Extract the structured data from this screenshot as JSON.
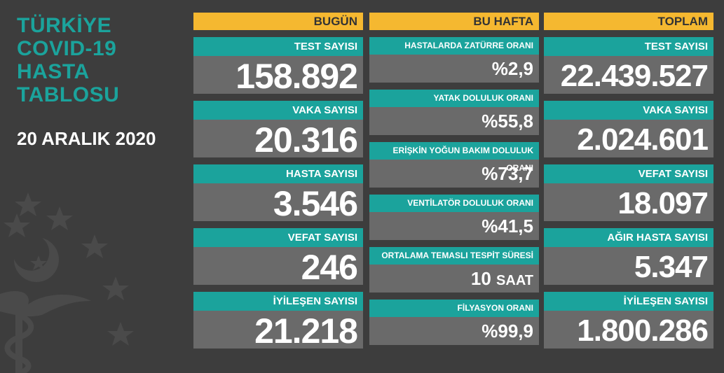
{
  "header": {
    "title": "TÜRKİYE\nCOVID-19\nHASTA\nTABLOSU",
    "date": "20 ARALIK 2020"
  },
  "columns": {
    "today": "BUGÜN",
    "week": "BU HAFTA",
    "total": "TOPLAM"
  },
  "today": [
    {
      "label": "TEST SAYISI",
      "value": "158.892"
    },
    {
      "label": "VAKA SAYISI",
      "value": "20.316"
    },
    {
      "label": "HASTA SAYISI",
      "value": "3.546"
    },
    {
      "label": "VEFAT SAYISI",
      "value": "246"
    },
    {
      "label": "İYİLEŞEN SAYISI",
      "value": "21.218"
    }
  ],
  "week": [
    {
      "label": "HASTALARDA ZATÜRRE ORANI",
      "value": "%2,9"
    },
    {
      "label": "YATAK DOLULUK ORANI",
      "value": "%55,8"
    },
    {
      "label": "ERİŞKİN YOĞUN BAKIM DOLULUK ORANI",
      "value": "%73,7"
    },
    {
      "label": "VENTİLATÖR DOLULUK ORANI",
      "value": "%41,5"
    },
    {
      "label": "ORTALAMA TEMASLI TESPİT SÜRESİ",
      "value": "10",
      "unit": "SAAT"
    },
    {
      "label": "FİLYASYON ORANI",
      "value": "%99,9"
    }
  ],
  "total": [
    {
      "label": "TEST SAYISI",
      "value": "22.439.527"
    },
    {
      "label": "VAKA SAYISI",
      "value": "2.024.601"
    },
    {
      "label": "VEFAT SAYISI",
      "value": "18.097"
    },
    {
      "label": "AĞIR HASTA SAYISI",
      "value": "5.347"
    },
    {
      "label": "İYİLEŞEN SAYISI",
      "value": "1.800.286"
    }
  ],
  "colors": {
    "background": "#3d3d3d",
    "teal": "#1ba39c",
    "orange": "#f5b830",
    "card": "#6a6a6a"
  }
}
